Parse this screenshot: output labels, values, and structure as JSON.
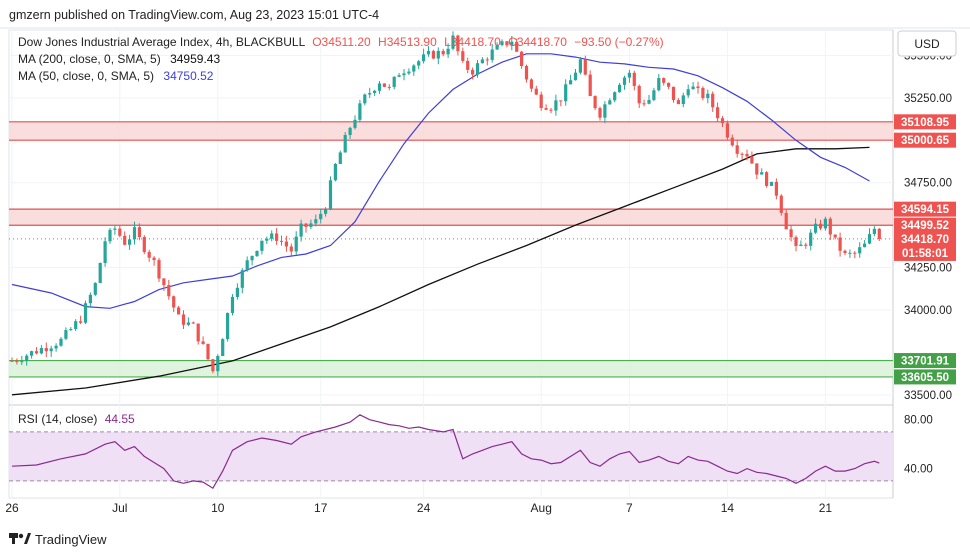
{
  "header": {
    "published": "gmzern published on TradingView.com, Aug 23, 2023 15:01 UTC-4"
  },
  "legend": {
    "symbol": "Dow Jones Industrial Average Index, 4h, BLACKBULL",
    "open": "O34511.20",
    "high": "H34513.90",
    "low": "L34418.70",
    "close": "C34418.70",
    "change": "−93.50 (−0.27%)",
    "ma200_label": "MA (200, close, 0, SMA, 5)",
    "ma200_value": "34959.43",
    "ma50_label": "MA (50, close, 0, SMA, 5)",
    "ma50_value": "34750.52"
  },
  "currency_button": "USD",
  "rsi": {
    "label": "RSI (14, close)",
    "value": "44.55",
    "ticks": [
      "80.00",
      "40.00"
    ]
  },
  "footer": {
    "brand": "TradingView"
  },
  "colors": {
    "up": "#26a69a",
    "down": "#ef5350",
    "ma50": "#3f3fd6",
    "ma200": "#111111",
    "rsi_line": "#8a2a8f",
    "rsi_band": "#efe0f5",
    "resistance_zone": "#f9d6d6",
    "support_zone": "#d8f0d6"
  },
  "chart_data": {
    "type": "candlestick",
    "timeframe": "4h",
    "x_ticks": [
      "26",
      "Jul",
      "10",
      "17",
      "24",
      "Aug",
      "7",
      "14",
      "21"
    ],
    "price_ticks": [
      35500,
      35250,
      34750,
      34250,
      34000,
      33500
    ],
    "price_tick_labels": [
      "35500.00",
      "35250.00",
      "34750.00",
      "34250.00",
      "34000.00",
      "33500.00"
    ],
    "ylim": [
      33440,
      35650
    ],
    "zones": [
      {
        "name": "resistance-upper",
        "from": 35000.65,
        "to": 35108.95,
        "color": "red"
      },
      {
        "name": "resistance-lower",
        "from": 34499.52,
        "to": 34594.15,
        "color": "red"
      },
      {
        "name": "support",
        "from": 33605.5,
        "to": 33701.91,
        "color": "green"
      }
    ],
    "price_labels": [
      {
        "value": 35108.95,
        "text": "35108.95",
        "kind": "red"
      },
      {
        "value": 35000.65,
        "text": "35000.65",
        "kind": "red"
      },
      {
        "value": 34594.15,
        "text": "34594.15",
        "kind": "red"
      },
      {
        "value": 34499.52,
        "text": "34499.52",
        "kind": "red"
      },
      {
        "value": 34418.7,
        "text": "34418.70",
        "kind": "current"
      },
      {
        "value": 33701.91,
        "text": "33701.91",
        "kind": "green"
      },
      {
        "value": 33605.5,
        "text": "33605.50",
        "kind": "green"
      }
    ],
    "countdown": "01:58:01",
    "last_price": 34418.7,
    "price_path": [
      [
        0,
        33700
      ],
      [
        5,
        33760
      ],
      [
        10,
        33820
      ],
      [
        14,
        33950
      ],
      [
        17,
        34150
      ],
      [
        19,
        34410
      ],
      [
        21,
        34480
      ],
      [
        23,
        34400
      ],
      [
        25,
        34460
      ],
      [
        27,
        34370
      ],
      [
        29,
        34280
      ],
      [
        31,
        34150
      ],
      [
        34,
        33950
      ],
      [
        37,
        33900
      ],
      [
        39,
        33780
      ],
      [
        41,
        33640
      ],
      [
        43,
        33850
      ],
      [
        45,
        34100
      ],
      [
        48,
        34280
      ],
      [
        51,
        34420
      ],
      [
        54,
        34430
      ],
      [
        57,
        34350
      ],
      [
        59,
        34480
      ],
      [
        62,
        34520
      ],
      [
        64,
        34620
      ],
      [
        66,
        34850
      ],
      [
        69,
        35080
      ],
      [
        72,
        35250
      ],
      [
        75,
        35350
      ],
      [
        77,
        35300
      ],
      [
        79,
        35400
      ],
      [
        82,
        35450
      ],
      [
        85,
        35500
      ],
      [
        88,
        35520
      ],
      [
        90,
        35600
      ],
      [
        92,
        35440
      ],
      [
        94,
        35410
      ],
      [
        96,
        35470
      ],
      [
        98,
        35520
      ],
      [
        100,
        35560
      ],
      [
        102,
        35590
      ],
      [
        104,
        35440
      ],
      [
        106,
        35300
      ],
      [
        108,
        35220
      ],
      [
        110,
        35200
      ],
      [
        112,
        35250
      ],
      [
        114,
        35350
      ],
      [
        116,
        35470
      ],
      [
        118,
        35250
      ],
      [
        120,
        35160
      ],
      [
        122,
        35260
      ],
      [
        124,
        35350
      ],
      [
        126,
        35400
      ],
      [
        128,
        35220
      ],
      [
        130,
        35240
      ],
      [
        132,
        35350
      ],
      [
        134,
        35300
      ],
      [
        136,
        35200
      ],
      [
        138,
        35330
      ],
      [
        140,
        35280
      ],
      [
        142,
        35250
      ],
      [
        144,
        35150
      ],
      [
        146,
        35040
      ],
      [
        148,
        34950
      ],
      [
        150,
        34920
      ],
      [
        152,
        34820
      ],
      [
        154,
        34760
      ],
      [
        156,
        34690
      ],
      [
        158,
        34500
      ],
      [
        160,
        34350
      ],
      [
        162,
        34400
      ],
      [
        164,
        34480
      ],
      [
        166,
        34520
      ],
      [
        168,
        34400
      ],
      [
        170,
        34320
      ],
      [
        172,
        34330
      ],
      [
        174,
        34380
      ],
      [
        176,
        34480
      ],
      [
        177,
        34419
      ]
    ],
    "ma50_path": [
      [
        0,
        34150
      ],
      [
        8,
        34100
      ],
      [
        15,
        34020
      ],
      [
        20,
        34010
      ],
      [
        25,
        34050
      ],
      [
        30,
        34120
      ],
      [
        35,
        34160
      ],
      [
        40,
        34180
      ],
      [
        45,
        34200
      ],
      [
        50,
        34260
      ],
      [
        55,
        34310
      ],
      [
        60,
        34330
      ],
      [
        65,
        34380
      ],
      [
        70,
        34520
      ],
      [
        75,
        34760
      ],
      [
        80,
        34980
      ],
      [
        85,
        35160
      ],
      [
        90,
        35300
      ],
      [
        95,
        35390
      ],
      [
        100,
        35460
      ],
      [
        105,
        35510
      ],
      [
        110,
        35510
      ],
      [
        115,
        35490
      ],
      [
        120,
        35460
      ],
      [
        125,
        35450
      ],
      [
        130,
        35430
      ],
      [
        135,
        35420
      ],
      [
        140,
        35380
      ],
      [
        145,
        35310
      ],
      [
        150,
        35230
      ],
      [
        155,
        35120
      ],
      [
        160,
        35000
      ],
      [
        165,
        34900
      ],
      [
        170,
        34840
      ],
      [
        175,
        34760
      ]
    ],
    "ma200_path": [
      [
        0,
        33500
      ],
      [
        15,
        33540
      ],
      [
        30,
        33610
      ],
      [
        45,
        33700
      ],
      [
        55,
        33800
      ],
      [
        65,
        33900
      ],
      [
        75,
        34020
      ],
      [
        85,
        34150
      ],
      [
        95,
        34270
      ],
      [
        105,
        34380
      ],
      [
        115,
        34500
      ],
      [
        125,
        34610
      ],
      [
        135,
        34720
      ],
      [
        145,
        34830
      ],
      [
        152,
        34920
      ],
      [
        160,
        34950
      ],
      [
        168,
        34950
      ],
      [
        175,
        34958
      ]
    ],
    "rsi_band": [
      30,
      70
    ],
    "rsi_ylim": [
      16,
      92
    ],
    "rsi_path": [
      [
        0,
        42
      ],
      [
        5,
        43
      ],
      [
        10,
        48
      ],
      [
        15,
        52
      ],
      [
        19,
        60
      ],
      [
        21,
        62
      ],
      [
        23,
        55
      ],
      [
        25,
        58
      ],
      [
        27,
        50
      ],
      [
        29,
        45
      ],
      [
        31,
        40
      ],
      [
        33,
        30
      ],
      [
        35,
        28
      ],
      [
        37,
        30
      ],
      [
        39,
        29
      ],
      [
        41,
        24
      ],
      [
        43,
        38
      ],
      [
        45,
        55
      ],
      [
        48,
        62
      ],
      [
        51,
        65
      ],
      [
        54,
        63
      ],
      [
        57,
        60
      ],
      [
        59,
        66
      ],
      [
        62,
        70
      ],
      [
        64,
        72
      ],
      [
        66,
        74
      ],
      [
        69,
        78
      ],
      [
        71,
        84
      ],
      [
        73,
        80
      ],
      [
        75,
        78
      ],
      [
        77,
        76
      ],
      [
        79,
        75
      ],
      [
        81,
        73
      ],
      [
        83,
        74
      ],
      [
        85,
        72
      ],
      [
        88,
        70
      ],
      [
        90,
        72
      ],
      [
        92,
        48
      ],
      [
        94,
        52
      ],
      [
        96,
        55
      ],
      [
        98,
        58
      ],
      [
        100,
        60
      ],
      [
        102,
        62
      ],
      [
        104,
        52
      ],
      [
        106,
        48
      ],
      [
        108,
        47
      ],
      [
        110,
        44
      ],
      [
        112,
        45
      ],
      [
        114,
        50
      ],
      [
        116,
        55
      ],
      [
        118,
        45
      ],
      [
        120,
        42
      ],
      [
        122,
        48
      ],
      [
        124,
        52
      ],
      [
        126,
        54
      ],
      [
        128,
        45
      ],
      [
        130,
        47
      ],
      [
        132,
        50
      ],
      [
        134,
        46
      ],
      [
        136,
        44
      ],
      [
        138,
        50
      ],
      [
        140,
        47
      ],
      [
        142,
        46
      ],
      [
        144,
        42
      ],
      [
        146,
        38
      ],
      [
        148,
        36
      ],
      [
        150,
        40
      ],
      [
        152,
        37
      ],
      [
        154,
        36
      ],
      [
        156,
        34
      ],
      [
        158,
        32
      ],
      [
        160,
        28
      ],
      [
        162,
        32
      ],
      [
        164,
        38
      ],
      [
        166,
        42
      ],
      [
        168,
        38
      ],
      [
        170,
        38
      ],
      [
        172,
        40
      ],
      [
        174,
        44
      ],
      [
        176,
        46
      ],
      [
        177,
        44.55
      ]
    ]
  }
}
